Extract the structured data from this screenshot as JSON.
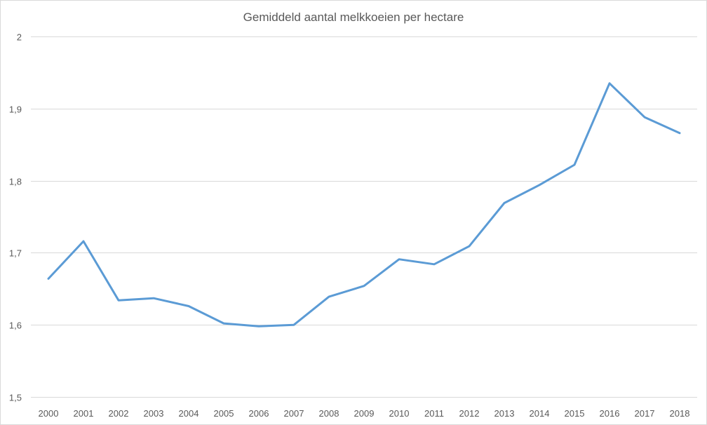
{
  "chart_data": {
    "type": "line",
    "title": "Gemiddeld aantal melkkoeien per hectare",
    "xlabel": "",
    "ylabel": "",
    "categories": [
      "2000",
      "2001",
      "2002",
      "2003",
      "2004",
      "2005",
      "2006",
      "2007",
      "2008",
      "2009",
      "2010",
      "2011",
      "2012",
      "2013",
      "2014",
      "2015",
      "2016",
      "2017",
      "2018"
    ],
    "series": [
      {
        "values": [
          1.664,
          1.716,
          1.634,
          1.637,
          1.626,
          1.602,
          1.598,
          1.6,
          1.639,
          1.654,
          1.691,
          1.684,
          1.709,
          1.769,
          1.794,
          1.822,
          1.935,
          1.888,
          1.866
        ],
        "color": "#5b9bd5"
      }
    ],
    "ylim": [
      1.5,
      2.0
    ],
    "yticks": [
      {
        "value": 2.0,
        "label": "2"
      },
      {
        "value": 1.9,
        "label": "1,9"
      },
      {
        "value": 1.8,
        "label": "1,8"
      },
      {
        "value": 1.7,
        "label": "1,7"
      },
      {
        "value": 1.6,
        "label": "1,6"
      },
      {
        "value": 1.5,
        "label": "1,5"
      }
    ],
    "grid": true,
    "legend": "none"
  }
}
